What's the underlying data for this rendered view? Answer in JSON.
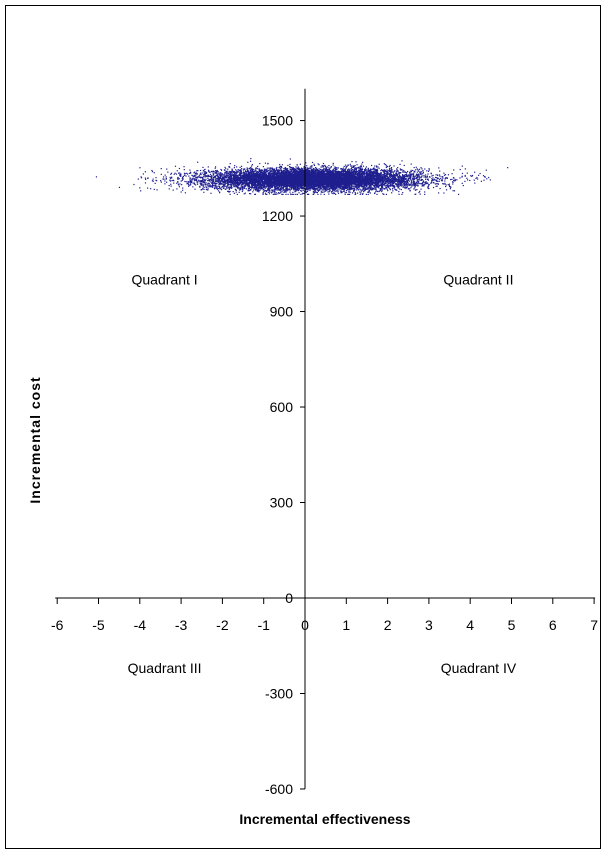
{
  "chart_data": {
    "type": "scatter",
    "title": "",
    "xlabel": "Incremental effectiveness",
    "ylabel": "Incremental cost",
    "xlim": [
      -6,
      7
    ],
    "ylim": [
      -600,
      1600
    ],
    "xticks": [
      -6,
      -5,
      -4,
      -3,
      -2,
      -1,
      0,
      1,
      2,
      3,
      4,
      5,
      6,
      7
    ],
    "yticks": [
      -600,
      -300,
      0,
      300,
      600,
      900,
      1200,
      1500
    ],
    "grid": false,
    "legend": "none",
    "marker_color": "#1f1f8f",
    "point_cloud": {
      "n_points": 10000,
      "x_mean": 0.2,
      "x_sd": 1.3,
      "x_range": [
        -5.1,
        5.1
      ],
      "y_mean": 1315,
      "y_sd": 17,
      "y_range": [
        1268,
        1400
      ]
    },
    "annotations": [
      {
        "text": "Quadrant I",
        "x": -3.4,
        "y": 1000
      },
      {
        "text": "Quadrant II",
        "x": 4.2,
        "y": 1000
      },
      {
        "text": "Quadrant III",
        "x": -3.4,
        "y": -220
      },
      {
        "text": "Quadrant IV",
        "x": 4.2,
        "y": -220
      }
    ]
  }
}
